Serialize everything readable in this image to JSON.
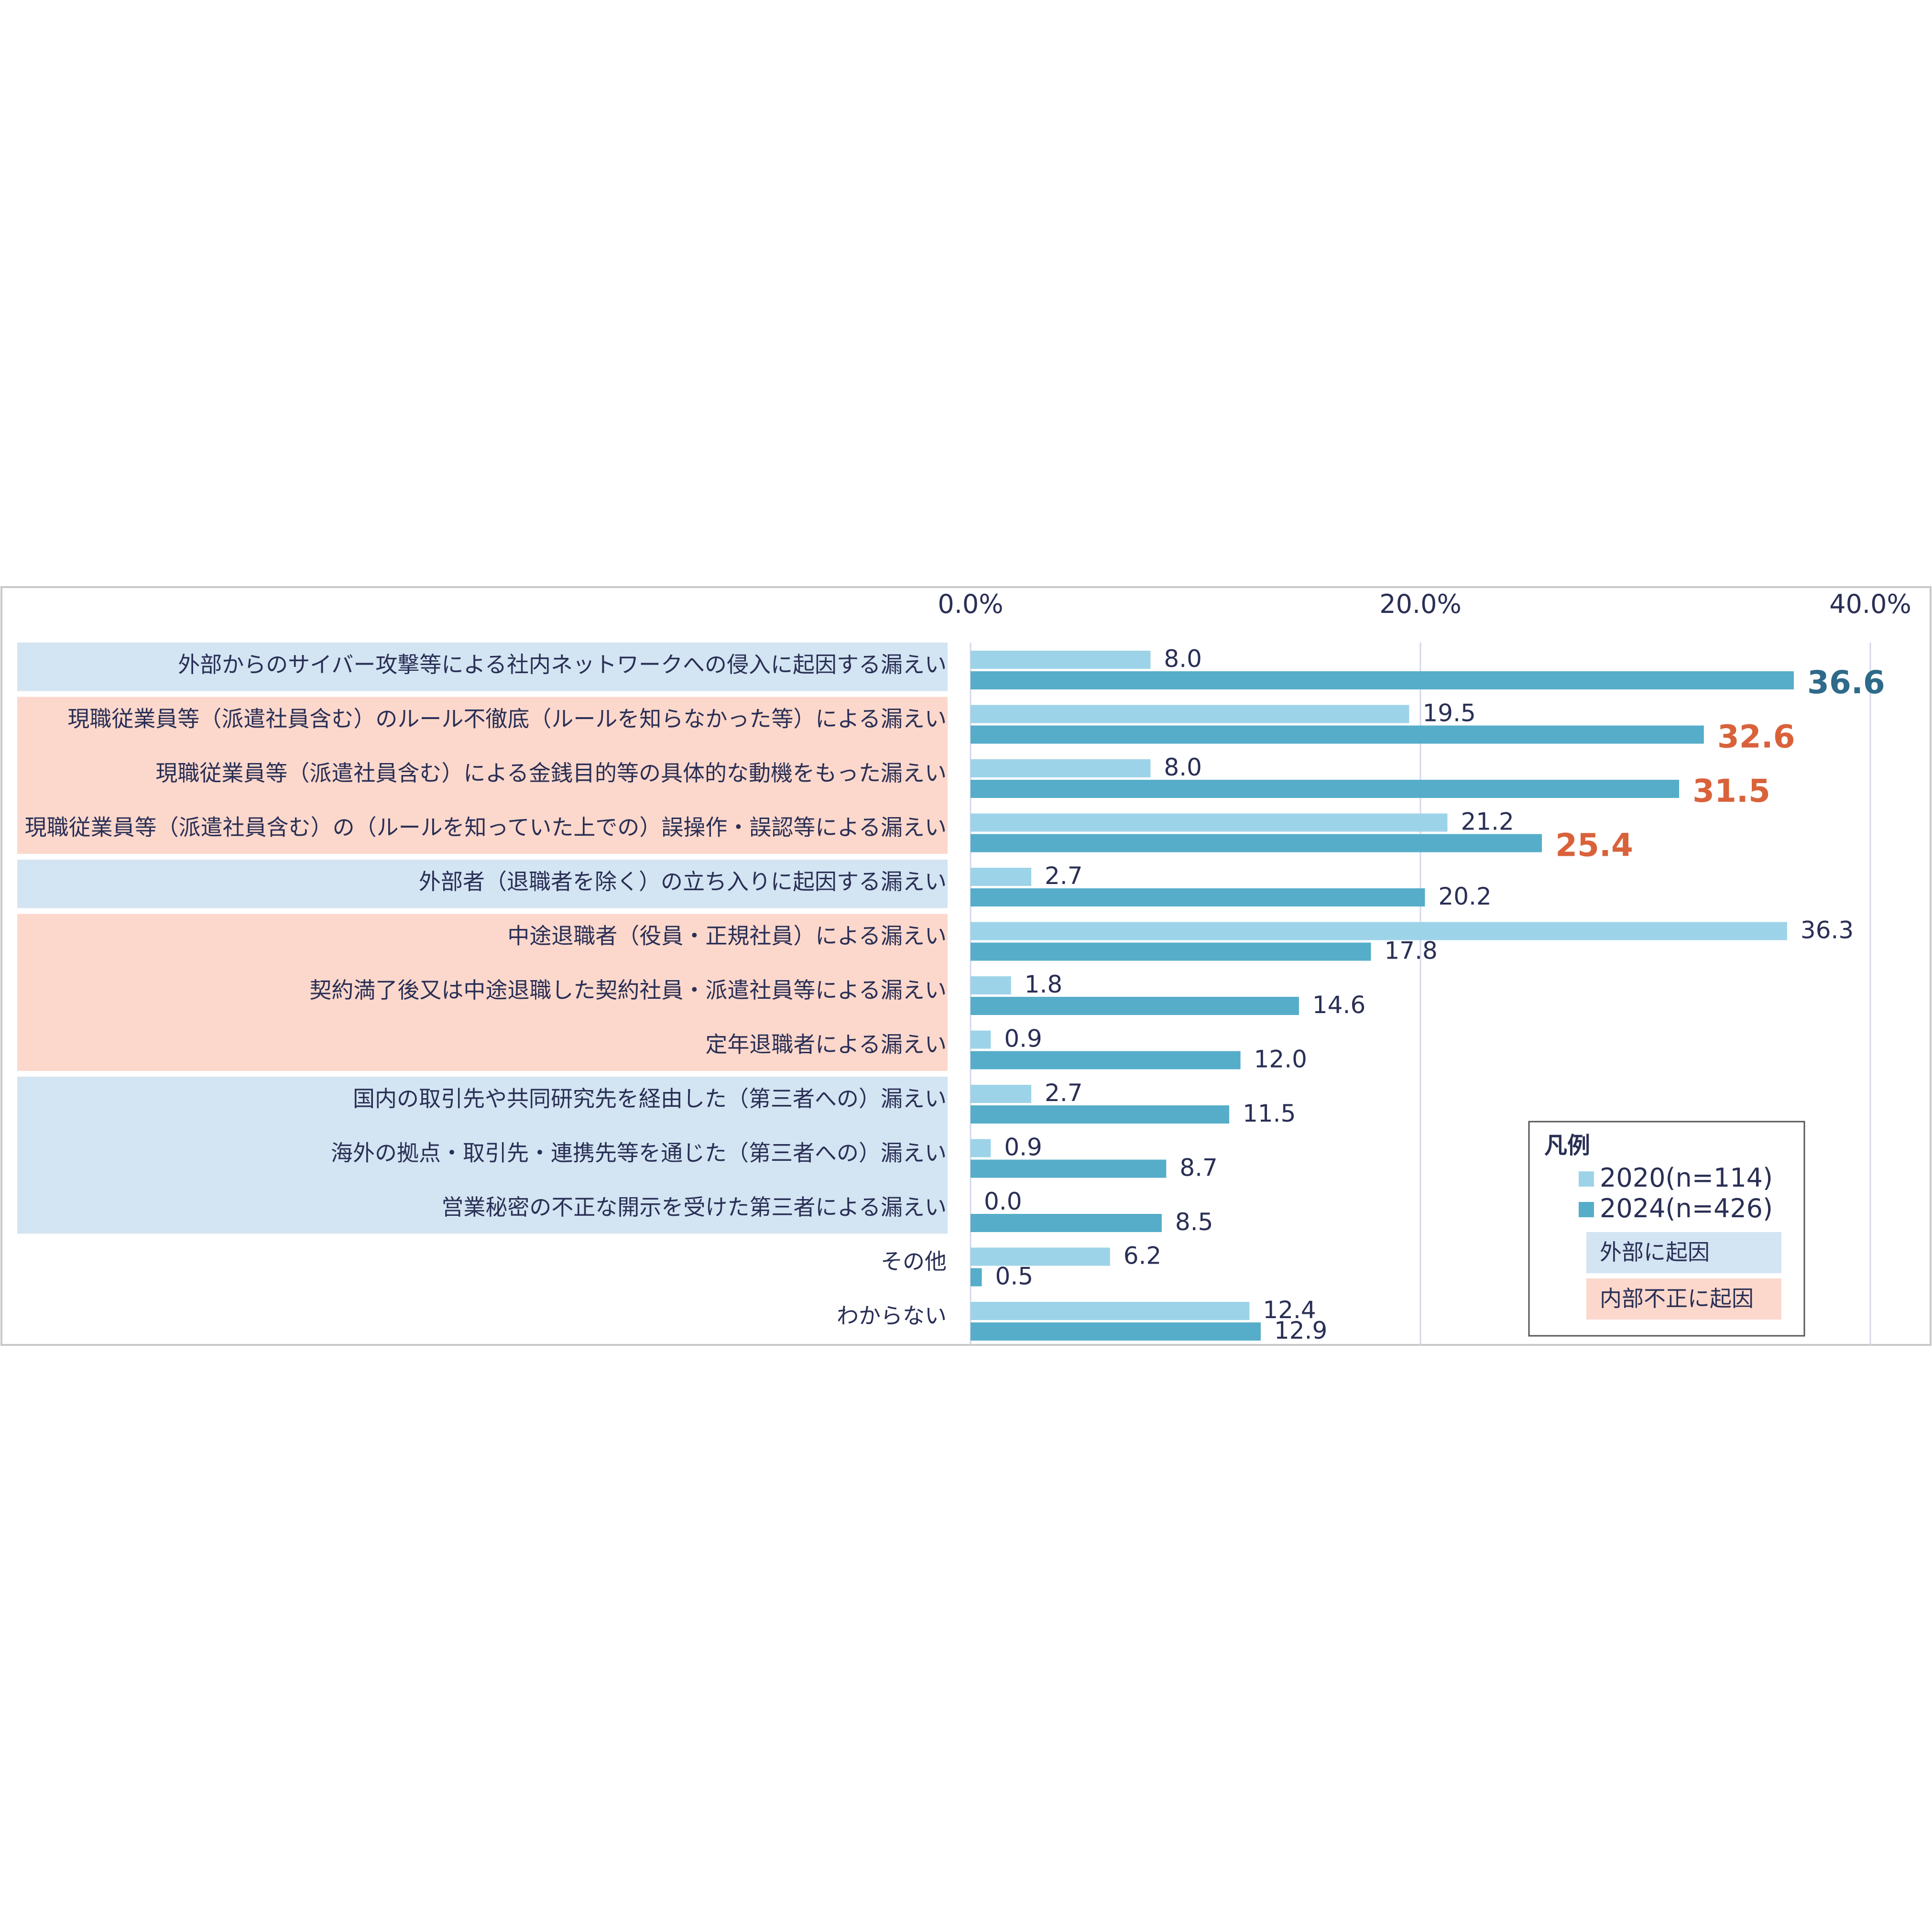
{
  "chart_data": {
    "type": "bar",
    "orientation": "horizontal",
    "xlim": [
      0,
      40
    ],
    "ticks": [
      "0.0%",
      "20.0%",
      "40.0%"
    ],
    "tick_values": [
      0,
      20,
      40
    ],
    "grid": true,
    "categories": [
      "外部からのサイバー攻撃等による社内ネットワークへの侵入に起因する漏えい",
      "現職従業員等（派遣社員含む）のルール不徹底（ルールを知らなかった等）による漏えい",
      "現職従業員等（派遣社員含む）による金銭目的等の具体的な動機をもった漏えい",
      "現職従業員等（派遣社員含む）の（ルールを知っていた上での）誤操作・誤認等による漏えい",
      "外部者（退職者を除く）の立ち入りに起因する漏えい",
      "中途退職者（役員・正規社員）による漏えい",
      "契約満了後又は中途退職した契約社員・派遣社員等による漏えい",
      "定年退職者による漏えい",
      "国内の取引先や共同研究先を経由した（第三者への）漏えい",
      "海外の拠点・取引先・連携先等を通じた（第三者への）漏えい",
      "営業秘密の不正な開示を受けた第三者による漏えい",
      "その他",
      "わからない"
    ],
    "groups": [
      "external",
      "internal",
      "internal",
      "internal",
      "external",
      "internal",
      "internal",
      "internal",
      "external",
      "external",
      "external",
      "none",
      "none"
    ],
    "series": [
      {
        "name": "2020(n=114)",
        "color": "#9dd3e8",
        "values": [
          8.0,
          19.5,
          8.0,
          21.2,
          2.7,
          36.3,
          1.8,
          0.9,
          2.7,
          0.9,
          0.0,
          6.2,
          12.4
        ],
        "labels": [
          "8.0",
          "19.5",
          "8.0",
          "21.2",
          "2.7",
          "36.3",
          "1.8",
          "0.9",
          "2.7",
          "0.9",
          "0.0",
          "6.2",
          "12.4"
        ]
      },
      {
        "name": "2024(n=426)",
        "color": "#56adc9",
        "values": [
          36.6,
          32.6,
          31.5,
          25.4,
          20.2,
          17.8,
          14.6,
          12.0,
          11.5,
          8.7,
          8.5,
          0.5,
          12.9
        ],
        "labels": [
          "36.6",
          "32.6",
          "31.5",
          "25.4",
          "20.2",
          "17.8",
          "14.6",
          "12.0",
          "11.5",
          "8.7",
          "8.5",
          "0.5",
          "12.9"
        ],
        "highlight": [
          "blue",
          "orange",
          "orange",
          "orange",
          null,
          null,
          null,
          null,
          null,
          null,
          null,
          null,
          null
        ]
      }
    ],
    "legend": {
      "title": "凡例",
      "position": "bottom-right",
      "category_items": [
        {
          "label": "外部に起因",
          "color": "#d3e4f2"
        },
        {
          "label": "内部不正に起因",
          "color": "#fcd8cc"
        }
      ]
    },
    "colors": {
      "external_band": "#d3e4f2",
      "internal_band": "#fcd8cc",
      "highlight_blue": "#2e6a8a",
      "highlight_orange": "#d9623b",
      "text": "#2a2f55",
      "grid": "#d4d7ea",
      "frame": "#c8c8c8"
    }
  }
}
